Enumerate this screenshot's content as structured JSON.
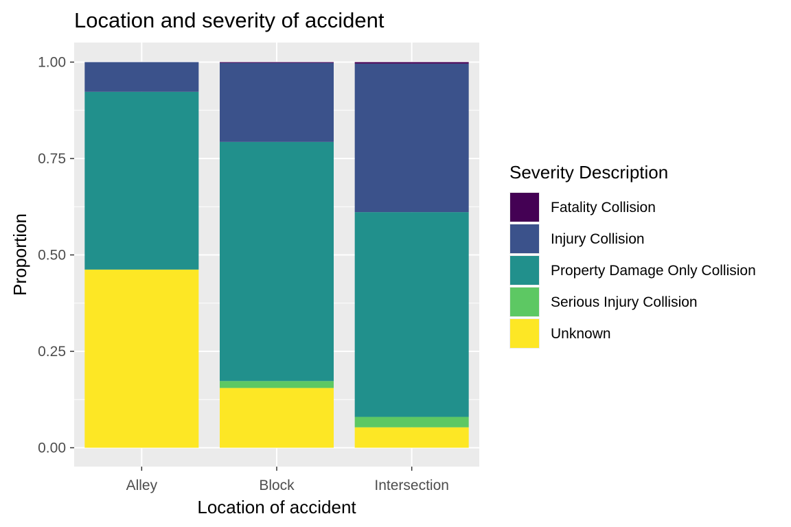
{
  "chart_data": {
    "type": "bar",
    "stacked": "proportion",
    "title": "Location and severity of accident",
    "xlabel": "Location of accident",
    "ylabel": "Proportion",
    "ylim": [
      0,
      1
    ],
    "yticks": [
      "0.00",
      "0.25",
      "0.50",
      "0.75",
      "1.00"
    ],
    "categories": [
      "Alley",
      "Block",
      "Intersection"
    ],
    "legend": {
      "title": "Severity Description",
      "position": "right"
    },
    "grid": true,
    "series": [
      {
        "name": "Fatality Collision",
        "color": "#440154",
        "values": [
          0.0,
          0.002,
          0.004
        ]
      },
      {
        "name": "Injury Collision",
        "color": "#3b528b",
        "values": [
          0.077,
          0.205,
          0.385
        ]
      },
      {
        "name": "Property Damage Only Collision",
        "color": "#21908c",
        "values": [
          0.461,
          0.62,
          0.531
        ]
      },
      {
        "name": "Serious Injury Collision",
        "color": "#5dc863",
        "values": [
          0.0,
          0.018,
          0.027
        ]
      },
      {
        "name": "Unknown",
        "color": "#fde725",
        "values": [
          0.462,
          0.155,
          0.053
        ]
      }
    ]
  }
}
